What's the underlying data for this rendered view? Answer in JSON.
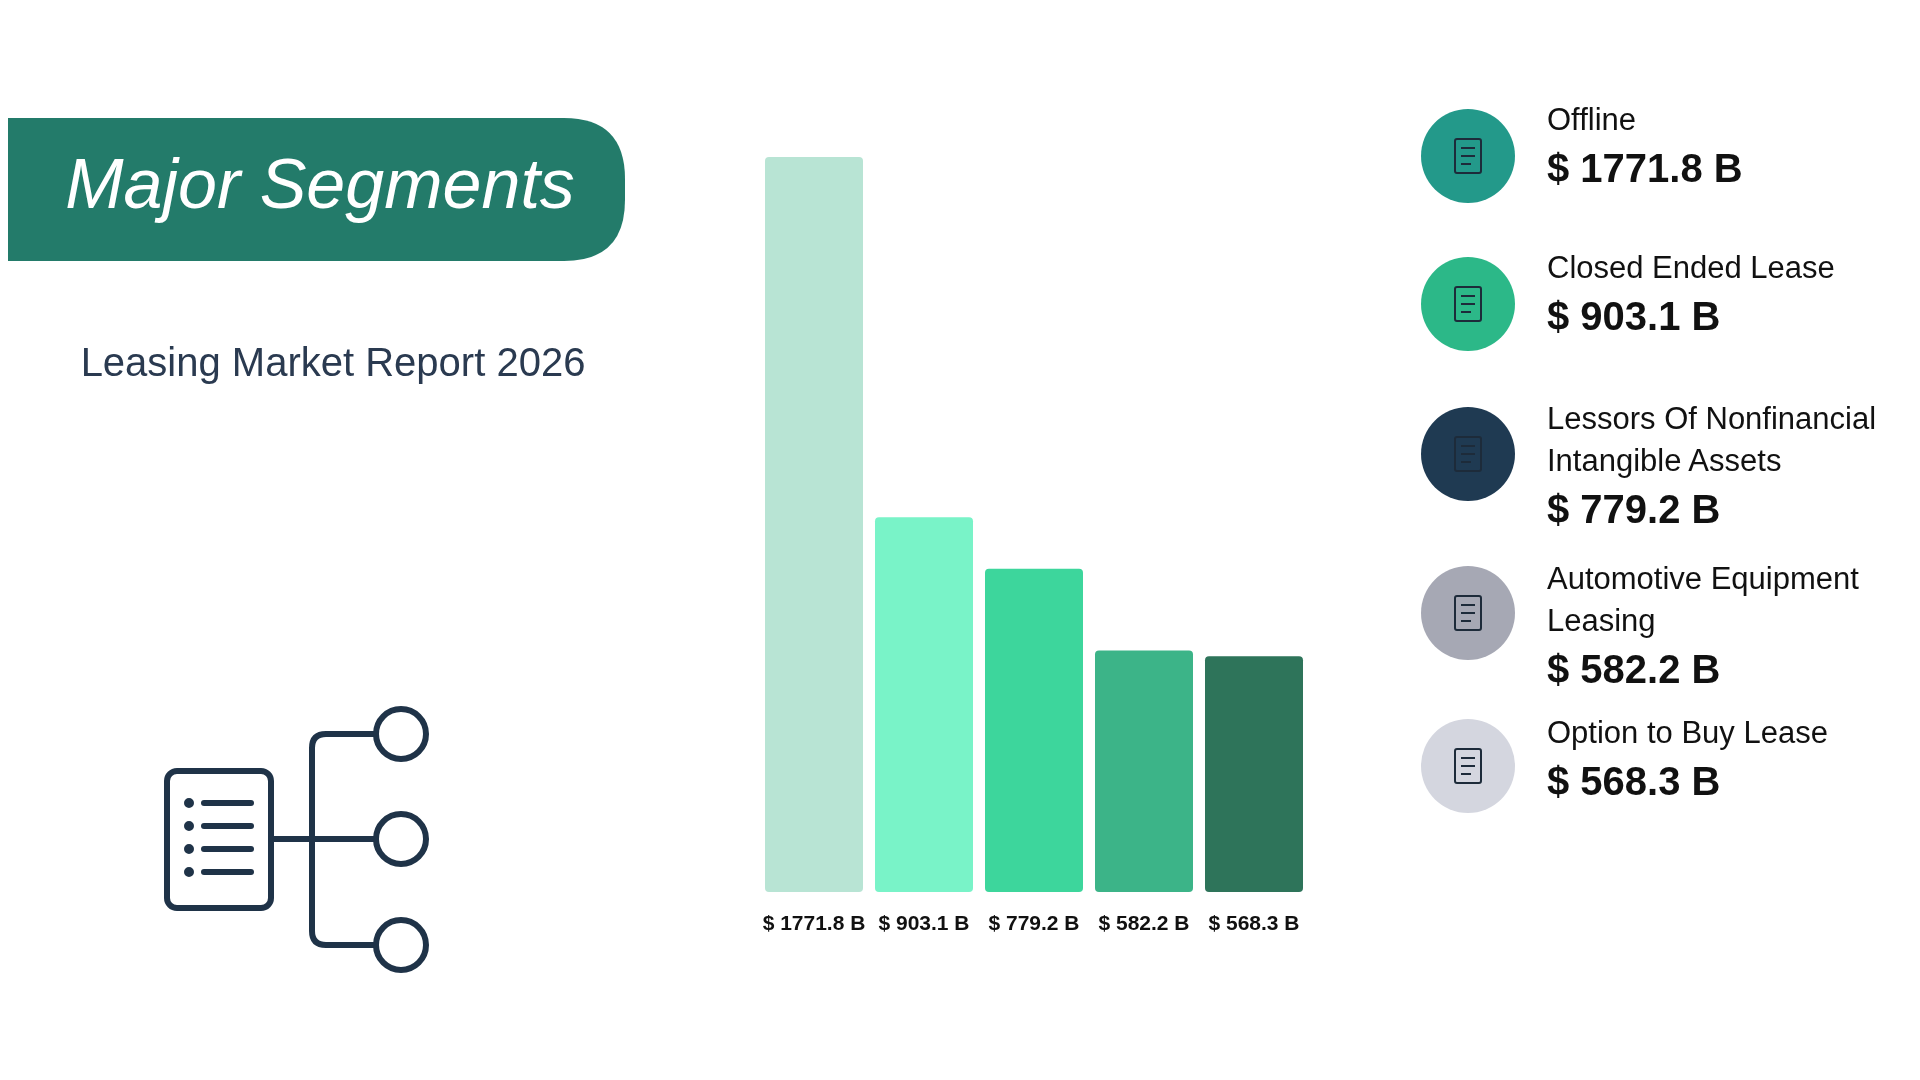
{
  "chart_data": {
    "type": "bar",
    "title": "Major Segments",
    "subtitle": "Leasing Market Report 2026",
    "categories": [
      null,
      null,
      null,
      null,
      null
    ],
    "annotations": [
      "Offline",
      "Closed Ended Lease",
      "Lessors Of Nonfinancial Intangible Assets",
      "Automotive Equipment Leasing",
      "Option to Buy Lease"
    ],
    "values": [
      1771.8,
      903.1,
      779.2,
      582.2,
      568.3
    ],
    "colors": [
      "#b8e4d4",
      "#79f3c8",
      "#3dd69c",
      "#3cb488",
      "#2e745a"
    ],
    "value_labels": [
      "$ 1771.8 B",
      "$ 903.1 B",
      "$ 779.2 B",
      "$ 582.2 B",
      "$ 568.3 B"
    ]
  }
}
